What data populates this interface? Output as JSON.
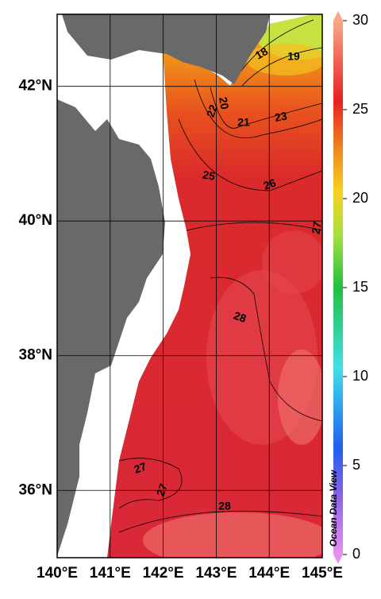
{
  "map": {
    "lon_range": [
      140,
      145
    ],
    "lat_range": [
      35,
      43.07
    ],
    "lon_ticks": [
      {
        "value": 140,
        "label": "140°E"
      },
      {
        "value": 141,
        "label": "141°E"
      },
      {
        "value": 142,
        "label": "142°E"
      },
      {
        "value": 143,
        "label": "143°E"
      },
      {
        "value": 144,
        "label": "144°E"
      },
      {
        "value": 145,
        "label": "145°E"
      }
    ],
    "lat_ticks": [
      {
        "value": 36,
        "label": "36°N"
      },
      {
        "value": 38,
        "label": "38°N"
      },
      {
        "value": 40,
        "label": "40°N"
      },
      {
        "value": 42,
        "label": "42°N"
      }
    ],
    "contour_labels": [
      18,
      19,
      20,
      22,
      21,
      23,
      25,
      26,
      27,
      28,
      27,
      27,
      28
    ]
  },
  "colorbar": {
    "range": [
      0,
      30
    ],
    "ticks": [
      0,
      5,
      10,
      15,
      20,
      25,
      30
    ]
  },
  "watermark": "Ocean Data View"
}
